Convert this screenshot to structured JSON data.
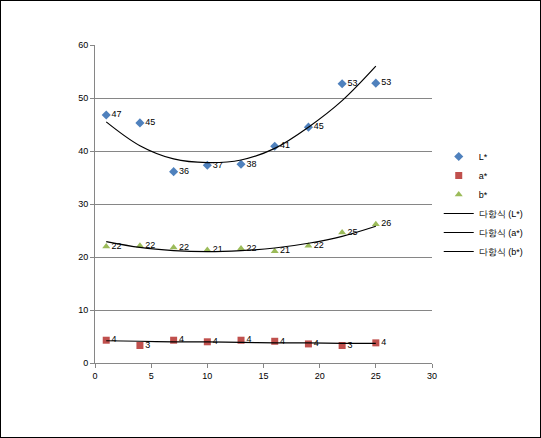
{
  "chart_data": {
    "type": "scatter",
    "x": [
      1,
      4,
      7,
      10,
      13,
      16,
      19,
      22,
      25
    ],
    "series": [
      {
        "name": "L*",
        "type": "scatter",
        "color": "#4F81BD",
        "marker": "diamond",
        "values": [
          46.8,
          45.3,
          36.1,
          37.3,
          37.5,
          40.9,
          44.5,
          52.7,
          52.8
        ],
        "value_labels": [
          "47",
          "45",
          "36",
          "37",
          "38",
          "41",
          "45",
          "53",
          "53"
        ]
      },
      {
        "name": "a*",
        "type": "scatter",
        "color": "#C0504D",
        "marker": "square",
        "values": [
          4.3,
          3.3,
          4.3,
          4.0,
          4.3,
          4.1,
          3.6,
          3.3,
          3.8
        ],
        "value_labels": [
          "4",
          "3",
          "4",
          "4",
          "4",
          "4",
          "4",
          "3",
          "4"
        ]
      },
      {
        "name": "b*",
        "type": "scatter",
        "color": "#9BBB59",
        "marker": "triangle",
        "values": [
          22.0,
          22.1,
          21.8,
          21.3,
          21.6,
          21.1,
          22.1,
          24.6,
          26.2
        ],
        "value_labels": [
          "22",
          "22",
          "22",
          "21",
          "22",
          "21",
          "22",
          "25",
          "26"
        ]
      },
      {
        "name": "다항식 (L*)",
        "type": "line",
        "color": "#000000",
        "line_style": "solid",
        "values": [
          45.5,
          41.0,
          38.5,
          37.8,
          38.3,
          40.5,
          44.5,
          49.5,
          56.0
        ]
      },
      {
        "name": "다항식 (a*)",
        "type": "line",
        "color": "#000000",
        "line_style": "solid",
        "values": [
          4.2,
          4.1,
          4.0,
          4.0,
          3.9,
          3.8,
          3.8,
          3.7,
          3.7
        ]
      },
      {
        "name": "다항식 (b*)",
        "type": "line",
        "color": "#000000",
        "line_style": "solid",
        "values": [
          22.9,
          21.8,
          21.2,
          21.0,
          21.2,
          21.7,
          22.6,
          23.9,
          25.8
        ]
      }
    ],
    "xlim": [
      0,
      30
    ],
    "xticks": [
      0,
      5,
      10,
      15,
      20,
      25,
      30
    ],
    "ylim": [
      0,
      60
    ],
    "yticks": [
      0,
      10,
      20,
      30,
      40,
      50,
      60
    ],
    "grid": true,
    "legend": "right",
    "data_labels": true
  }
}
